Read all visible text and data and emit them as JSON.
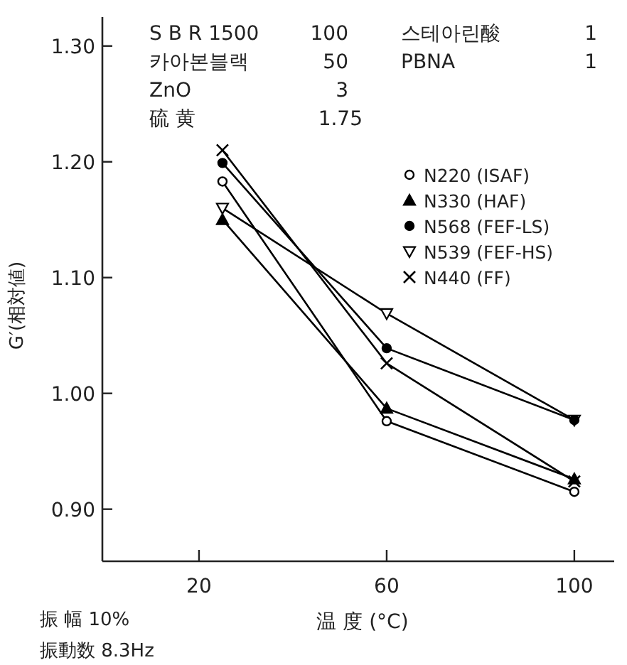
{
  "chart_data": {
    "type": "line",
    "xlabel": "温 度 (°C)",
    "ylabel": "G′(相対値)",
    "x": [
      25,
      60,
      100
    ],
    "xlim": [
      -0.6,
      108.5
    ],
    "xticks": [
      20,
      60,
      100
    ],
    "ylim": [
      0.855,
      1.325
    ],
    "yticks": [
      {
        "value": 0.9,
        "label": "0.90"
      },
      {
        "value": 1.0,
        "label": "1.00"
      },
      {
        "value": 1.1,
        "label": "1.10"
      },
      {
        "value": 1.2,
        "label": "1.20"
      },
      {
        "value": 1.3,
        "label": "1.30"
      }
    ],
    "series": [
      {
        "name": "N220 (ISAF)",
        "color": "#000000",
        "marker": "circle",
        "values": [
          1.183,
          0.976,
          0.915
        ]
      },
      {
        "name": "N330 (HAF)",
        "color": "#000000",
        "marker": "triangle",
        "values": [
          1.15,
          0.987,
          0.926
        ]
      },
      {
        "name": "N568 (FEF-LS)",
        "color": "#000000",
        "marker": "circle",
        "values": [
          1.199,
          1.039,
          0.977
        ]
      },
      {
        "name": "N539 (FEF-HS)",
        "color": "#000000",
        "marker": "triangle",
        "values": [
          1.16,
          1.069,
          0.977
        ]
      },
      {
        "name": "N440 (FF)",
        "color": "#000000",
        "marker": "cross",
        "values": [
          1.21,
          1.026,
          0.924
        ]
      }
    ],
    "legend": "top right",
    "grid": false,
    "line_style": "solid",
    "annotations": [
      "S B R 1500   100",
      "카아본블랙   50",
      "ZnO   3",
      "硫  黄   1.75",
      "스테아린酸   1",
      "PBNA   1",
      "振 幅 10%",
      "振動数 8.3Hz"
    ]
  }
}
